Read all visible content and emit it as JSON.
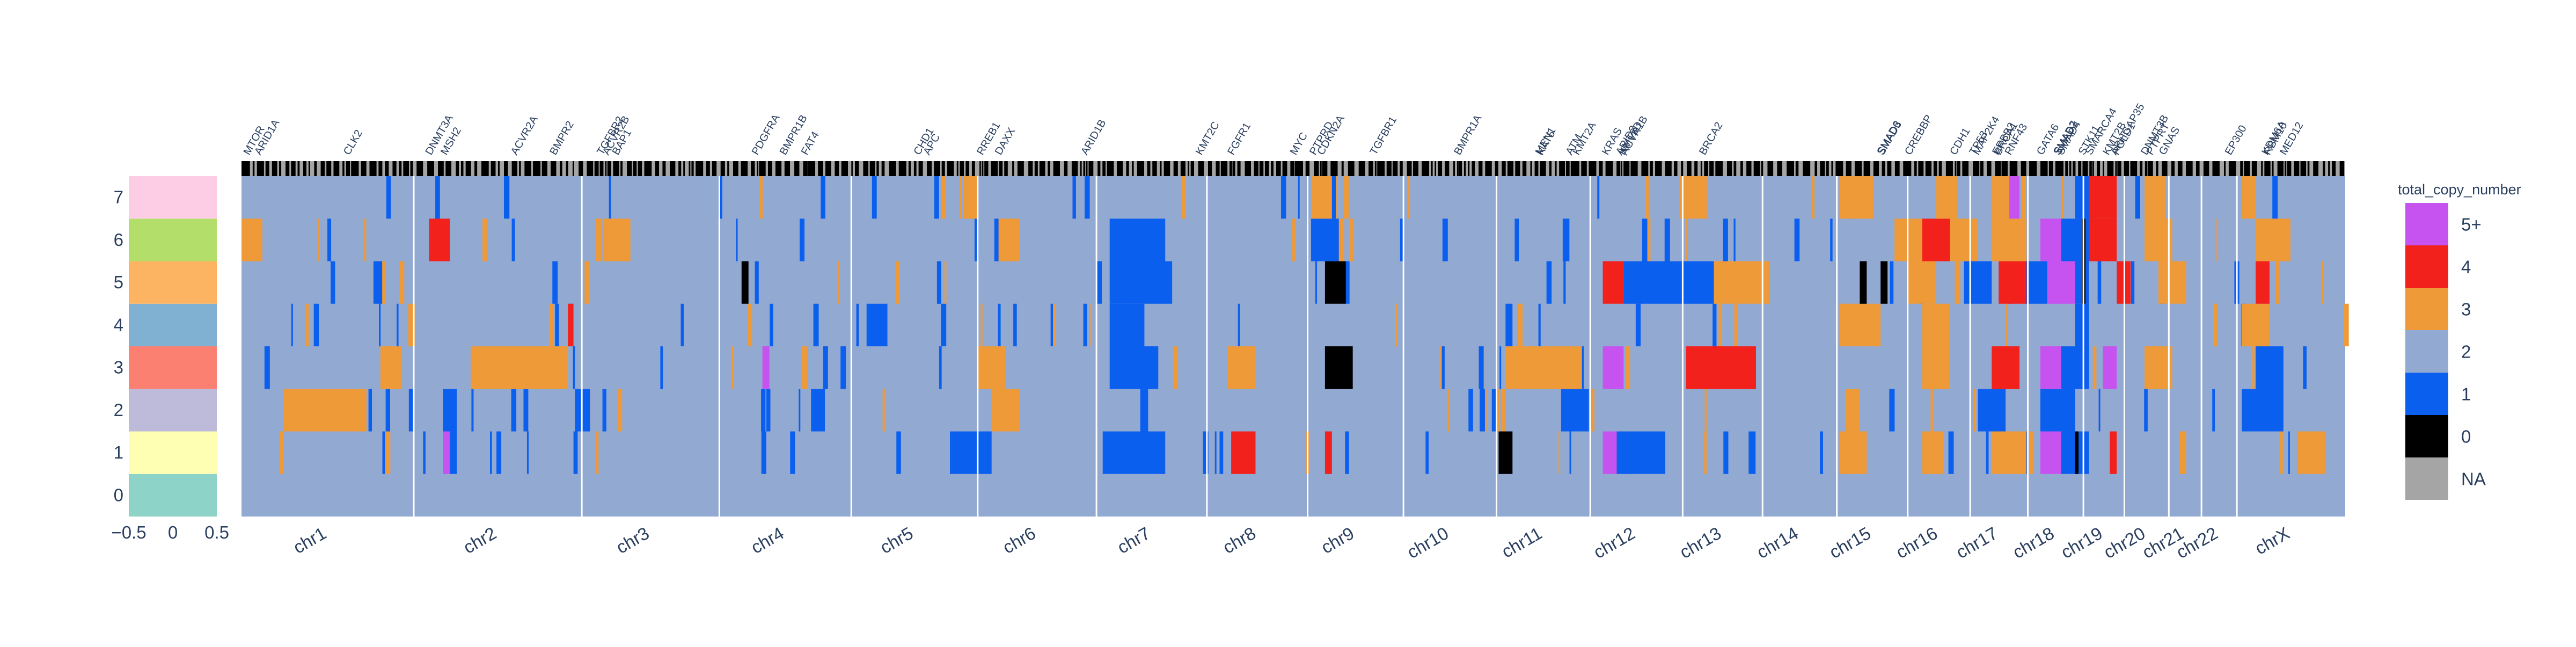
{
  "chart_data": {
    "type": "heatmap",
    "title": "",
    "legend": {
      "title": "total_copy_number",
      "placement": "right",
      "entries": [
        {
          "label": "5+",
          "color": "#c653ef"
        },
        {
          "label": "4",
          "color": "#f2211b"
        },
        {
          "label": "3",
          "color": "#ef9a38"
        },
        {
          "label": "2",
          "color": "#92a9d2"
        },
        {
          "label": "1",
          "color": "#0b5fef"
        },
        {
          "label": "0",
          "color": "#000000"
        },
        {
          "label": "NA",
          "color": "#a5a5a5"
        }
      ]
    },
    "sample_colorbar": {
      "rows": [
        "0",
        "1",
        "2",
        "3",
        "4",
        "5",
        "6",
        "7"
      ],
      "colors": [
        "#8dd3c7",
        "#ffffb3",
        "#bebada",
        "#fb8072",
        "#80b1d3",
        "#fdb462",
        "#b3de69",
        "#fccde5"
      ],
      "x_ticks": [
        "−0.5",
        "0",
        "0.5"
      ],
      "x_range": [
        -0.5,
        0.5
      ]
    },
    "x_axis_unit": "genomic position, Mb",
    "chromosomes": [
      {
        "name": "chr1",
        "start": 0,
        "end": 248
      },
      {
        "name": "chr2",
        "start": 248,
        "end": 490
      },
      {
        "name": "chr3",
        "start": 490,
        "end": 688
      },
      {
        "name": "chr4",
        "start": 688,
        "end": 878
      },
      {
        "name": "chr5",
        "start": 878,
        "end": 1060
      },
      {
        "name": "chr6",
        "start": 1060,
        "end": 1231
      },
      {
        "name": "chr7",
        "start": 1231,
        "end": 1390
      },
      {
        "name": "chr8",
        "start": 1390,
        "end": 1535
      },
      {
        "name": "chr9",
        "start": 1535,
        "end": 1673
      },
      {
        "name": "chr10",
        "start": 1673,
        "end": 1807
      },
      {
        "name": "chr11",
        "start": 1807,
        "end": 1942
      },
      {
        "name": "chr12",
        "start": 1942,
        "end": 2075
      },
      {
        "name": "chr13",
        "start": 2075,
        "end": 2190
      },
      {
        "name": "chr14",
        "start": 2190,
        "end": 2297
      },
      {
        "name": "chr15",
        "start": 2297,
        "end": 2399
      },
      {
        "name": "chr16",
        "start": 2399,
        "end": 2489
      },
      {
        "name": "chr17",
        "start": 2489,
        "end": 2572
      },
      {
        "name": "chr18",
        "start": 2572,
        "end": 2652
      },
      {
        "name": "chr19",
        "start": 2652,
        "end": 2711
      },
      {
        "name": "chr20",
        "start": 2711,
        "end": 2775
      },
      {
        "name": "chr21",
        "start": 2775,
        "end": 2822
      },
      {
        "name": "chr22",
        "start": 2822,
        "end": 2873
      },
      {
        "name": "chrX",
        "start": 2873,
        "end": 3029
      }
    ],
    "genes": [
      {
        "name": "MTOR",
        "pos": 11
      },
      {
        "name": "ARID1A",
        "pos": 27
      },
      {
        "name": "CLK2",
        "pos": 155
      },
      {
        "name": "DNMT3A",
        "pos": 273
      },
      {
        "name": "MSH2",
        "pos": 295
      },
      {
        "name": "ACVR2A",
        "pos": 396
      },
      {
        "name": "BMPR2",
        "pos": 452
      },
      {
        "name": "TGFBR2",
        "pos": 520
      },
      {
        "name": "ACVR2B",
        "pos": 528
      },
      {
        "name": "BAP1",
        "pos": 542
      },
      {
        "name": "PDGFRA",
        "pos": 743
      },
      {
        "name": "BMPR1B",
        "pos": 783
      },
      {
        "name": "FAT4",
        "pos": 814
      },
      {
        "name": "CHD1",
        "pos": 976
      },
      {
        "name": "APC",
        "pos": 990
      },
      {
        "name": "RREB1",
        "pos": 1067
      },
      {
        "name": "DAXX",
        "pos": 1093
      },
      {
        "name": "ARID1B",
        "pos": 1217
      },
      {
        "name": "KMT2C",
        "pos": 1382
      },
      {
        "name": "FGFR1",
        "pos": 1428
      },
      {
        "name": "MYC",
        "pos": 1518
      },
      {
        "name": "PTPRD",
        "pos": 1546
      },
      {
        "name": "CDKN2A",
        "pos": 1557
      },
      {
        "name": "TGFBR1",
        "pos": 1633
      },
      {
        "name": "BMPR1A",
        "pos": 1754
      },
      {
        "name": "MEN1",
        "pos": 1871
      },
      {
        "name": "KAT5",
        "pos": 1873
      },
      {
        "name": "ATM",
        "pos": 1915
      },
      {
        "name": "KMT2A",
        "pos": 1925
      },
      {
        "name": "KRAS",
        "pos": 1967
      },
      {
        "name": "ARID2",
        "pos": 1987
      },
      {
        "name": "KMT2D",
        "pos": 1991
      },
      {
        "name": "ACVR1B",
        "pos": 1994
      },
      {
        "name": "BRCA2",
        "pos": 2107
      },
      {
        "name": "SMAD6",
        "pos": 2363
      },
      {
        "name": "SMAD3",
        "pos": 2364
      },
      {
        "name": "CREBBP",
        "pos": 2403
      },
      {
        "name": "CDH1",
        "pos": 2468
      },
      {
        "name": "TP53",
        "pos": 2496
      },
      {
        "name": "MAP2K4",
        "pos": 2501
      },
      {
        "name": "ERBB2",
        "pos": 2529
      },
      {
        "name": "BRCA1",
        "pos": 2532
      },
      {
        "name": "RNF43",
        "pos": 2547
      },
      {
        "name": "GATA6",
        "pos": 2593
      },
      {
        "name": "SMAD2",
        "pos": 2617
      },
      {
        "name": "SMAD7",
        "pos": 2618
      },
      {
        "name": "SMAD4",
        "pos": 2622
      },
      {
        "name": "STK11",
        "pos": 2653
      },
      {
        "name": "SMARCA4",
        "pos": 2663
      },
      {
        "name": "KMT2B",
        "pos": 2688
      },
      {
        "name": "ARHGAP35",
        "pos": 2699
      },
      {
        "name": "POLD1",
        "pos": 2702
      },
      {
        "name": "DNMT3B",
        "pos": 2743
      },
      {
        "name": "PTPRT",
        "pos": 2751
      },
      {
        "name": "GNAS",
        "pos": 2769
      },
      {
        "name": "EP300",
        "pos": 2864
      },
      {
        "name": "KDM6A",
        "pos": 2917
      },
      {
        "name": "RBM10",
        "pos": 2920
      },
      {
        "name": "MED12",
        "pos": 2943
      }
    ],
    "samples": [
      "0",
      "1",
      "2",
      "3",
      "4",
      "5",
      "6",
      "7"
    ],
    "segments": [
      [],
      [
        {
          "s": 55,
          "e": 60,
          "v": "3"
        },
        {
          "s": 290,
          "e": 300,
          "v": "5+"
        },
        {
          "s": 300,
          "e": 310,
          "v": "1"
        },
        {
          "s": 478,
          "e": 484,
          "v": "1"
        },
        {
          "s": 1020,
          "e": 1080,
          "v": "1"
        },
        {
          "s": 1240,
          "e": 1330,
          "v": "1"
        },
        {
          "s": 1425,
          "e": 1460,
          "v": "4"
        },
        {
          "s": 1560,
          "e": 1570,
          "v": "4"
        },
        {
          "s": 1810,
          "e": 1830,
          "v": "0"
        },
        {
          "s": 1960,
          "e": 1980,
          "v": "5+"
        },
        {
          "s": 1980,
          "e": 2050,
          "v": "1"
        },
        {
          "s": 2170,
          "e": 2180,
          "v": "1"
        },
        {
          "s": 2300,
          "e": 2340,
          "v": "3"
        },
        {
          "s": 2420,
          "e": 2450,
          "v": "3"
        },
        {
          "s": 2520,
          "e": 2570,
          "v": "3"
        },
        {
          "s": 2590,
          "e": 2620,
          "v": "5+"
        },
        {
          "s": 2620,
          "e": 2660,
          "v": "1"
        },
        {
          "s": 2640,
          "e": 2645,
          "v": "0"
        },
        {
          "s": 2690,
          "e": 2700,
          "v": "4"
        },
        {
          "s": 2790,
          "e": 2800,
          "v": "3"
        },
        {
          "s": 2960,
          "e": 3000,
          "v": "3"
        }
      ],
      [
        {
          "s": 60,
          "e": 180,
          "v": "3"
        },
        {
          "s": 290,
          "e": 310,
          "v": "1"
        },
        {
          "s": 480,
          "e": 500,
          "v": "1"
        },
        {
          "s": 820,
          "e": 840,
          "v": "1"
        },
        {
          "s": 1080,
          "e": 1120,
          "v": "3"
        },
        {
          "s": 1900,
          "e": 1940,
          "v": "1"
        },
        {
          "s": 2310,
          "e": 2330,
          "v": "3"
        },
        {
          "s": 2500,
          "e": 2540,
          "v": "1"
        },
        {
          "s": 2590,
          "e": 2640,
          "v": "1"
        },
        {
          "s": 2880,
          "e": 2940,
          "v": "1"
        }
      ],
      [
        {
          "s": 200,
          "e": 230,
          "v": "3"
        },
        {
          "s": 330,
          "e": 470,
          "v": "3"
        },
        {
          "s": 750,
          "e": 760,
          "v": "5+"
        },
        {
          "s": 1060,
          "e": 1100,
          "v": "3"
        },
        {
          "s": 1250,
          "e": 1320,
          "v": "1"
        },
        {
          "s": 1420,
          "e": 1460,
          "v": "3"
        },
        {
          "s": 1560,
          "e": 1600,
          "v": "0"
        },
        {
          "s": 1820,
          "e": 1930,
          "v": "3"
        },
        {
          "s": 1960,
          "e": 1990,
          "v": "5+"
        },
        {
          "s": 2080,
          "e": 2180,
          "v": "4"
        },
        {
          "s": 2420,
          "e": 2460,
          "v": "3"
        },
        {
          "s": 2520,
          "e": 2560,
          "v": "4"
        },
        {
          "s": 2590,
          "e": 2620,
          "v": "5+"
        },
        {
          "s": 2620,
          "e": 2660,
          "v": "1"
        },
        {
          "s": 2680,
          "e": 2700,
          "v": "5+"
        },
        {
          "s": 2740,
          "e": 2780,
          "v": "3"
        },
        {
          "s": 2900,
          "e": 2940,
          "v": "1"
        }
      ],
      [
        {
          "s": 240,
          "e": 250,
          "v": "3"
        },
        {
          "s": 470,
          "e": 478,
          "v": "4"
        },
        {
          "s": 900,
          "e": 930,
          "v": "1"
        },
        {
          "s": 1250,
          "e": 1300,
          "v": "1"
        },
        {
          "s": 1820,
          "e": 1830,
          "v": "1"
        },
        {
          "s": 2300,
          "e": 2360,
          "v": "3"
        },
        {
          "s": 2420,
          "e": 2460,
          "v": "3"
        },
        {
          "s": 2640,
          "e": 2660,
          "v": "1"
        },
        {
          "s": 2880,
          "e": 2920,
          "v": "3"
        }
      ],
      [
        {
          "s": 190,
          "e": 200,
          "v": "1"
        },
        {
          "s": 720,
          "e": 730,
          "v": "0"
        },
        {
          "s": 1250,
          "e": 1340,
          "v": "1"
        },
        {
          "s": 1560,
          "e": 1590,
          "v": "0"
        },
        {
          "s": 1960,
          "e": 1990,
          "v": "4"
        },
        {
          "s": 1990,
          "e": 2120,
          "v": "1"
        },
        {
          "s": 2120,
          "e": 2200,
          "v": "3"
        },
        {
          "s": 2330,
          "e": 2340,
          "v": "0"
        },
        {
          "s": 2360,
          "e": 2370,
          "v": "0"
        },
        {
          "s": 2400,
          "e": 2440,
          "v": "3"
        },
        {
          "s": 2480,
          "e": 2520,
          "v": "1"
        },
        {
          "s": 2530,
          "e": 2570,
          "v": "4"
        },
        {
          "s": 2570,
          "e": 2600,
          "v": "1"
        },
        {
          "s": 2600,
          "e": 2640,
          "v": "5+"
        },
        {
          "s": 2640,
          "e": 2660,
          "v": "1"
        },
        {
          "s": 2650,
          "e": 2655,
          "v": "0"
        },
        {
          "s": 2700,
          "e": 2720,
          "v": "4"
        },
        {
          "s": 2760,
          "e": 2800,
          "v": "3"
        },
        {
          "s": 2900,
          "e": 2920,
          "v": "4"
        }
      ],
      [
        {
          "s": 0,
          "e": 30,
          "v": "3"
        },
        {
          "s": 270,
          "e": 300,
          "v": "4"
        },
        {
          "s": 520,
          "e": 560,
          "v": "3"
        },
        {
          "s": 1090,
          "e": 1120,
          "v": "3"
        },
        {
          "s": 1250,
          "e": 1330,
          "v": "1"
        },
        {
          "s": 1540,
          "e": 1580,
          "v": "1"
        },
        {
          "s": 2380,
          "e": 2420,
          "v": "3"
        },
        {
          "s": 2420,
          "e": 2460,
          "v": "4"
        },
        {
          "s": 2460,
          "e": 2500,
          "v": "3"
        },
        {
          "s": 2520,
          "e": 2570,
          "v": "3"
        },
        {
          "s": 2590,
          "e": 2620,
          "v": "5+"
        },
        {
          "s": 2620,
          "e": 2660,
          "v": "1"
        },
        {
          "s": 2650,
          "e": 2655,
          "v": "0"
        },
        {
          "s": 2660,
          "e": 2700,
          "v": "4"
        },
        {
          "s": 2740,
          "e": 2780,
          "v": "3"
        },
        {
          "s": 2900,
          "e": 2950,
          "v": "3"
        }
      ],
      [
        {
          "s": 1040,
          "e": 1060,
          "v": "3"
        },
        {
          "s": 1540,
          "e": 1570,
          "v": "3"
        },
        {
          "s": 2070,
          "e": 2110,
          "v": "3"
        },
        {
          "s": 2300,
          "e": 2350,
          "v": "3"
        },
        {
          "s": 2440,
          "e": 2470,
          "v": "3"
        },
        {
          "s": 2520,
          "e": 2545,
          "v": "3"
        },
        {
          "s": 2545,
          "e": 2560,
          "v": "5+"
        },
        {
          "s": 2640,
          "e": 2660,
          "v": "1"
        },
        {
          "s": 2660,
          "e": 2700,
          "v": "4"
        },
        {
          "s": 2740,
          "e": 2770,
          "v": "3"
        },
        {
          "s": 2880,
          "e": 2900,
          "v": "3"
        }
      ]
    ]
  }
}
